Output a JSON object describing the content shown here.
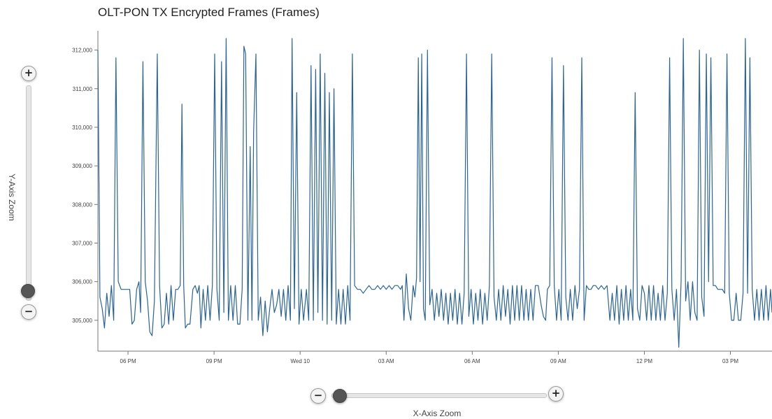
{
  "chart_data": {
    "type": "line",
    "title": "OLT-PON TX Encrypted Frames (Frames)",
    "xlabel": "",
    "ylabel": "",
    "ylim": [
      304200,
      312500
    ],
    "y_ticks": [
      305000,
      306000,
      307000,
      308000,
      309000,
      310000,
      311000,
      312000
    ],
    "y_tick_labels": [
      "305,000",
      "306,000",
      "307,000",
      "308,000",
      "309,000",
      "310,000",
      "311,000",
      "312,000"
    ],
    "x_range_hours": [
      16.95,
      40.45
    ],
    "x_ticks": [
      18,
      21,
      24,
      27,
      30,
      33,
      36,
      39
    ],
    "x_tick_labels": [
      "06 PM",
      "09 PM",
      "Wed 10",
      "03 AM",
      "06 AM",
      "09 AM",
      "12 PM",
      "03 PM"
    ],
    "grid": false,
    "legend": "none",
    "series": [
      {
        "color": "#2a6496",
        "points": [
          [
            16.95,
            312000
          ],
          [
            17.02,
            305600
          ],
          [
            17.1,
            305300
          ],
          [
            17.18,
            304800
          ],
          [
            17.26,
            305700
          ],
          [
            17.34,
            305100
          ],
          [
            17.42,
            305900
          ],
          [
            17.5,
            305000
          ],
          [
            17.58,
            311800
          ],
          [
            17.66,
            306000
          ],
          [
            17.76,
            305800
          ],
          [
            17.86,
            305800
          ],
          [
            17.96,
            305800
          ],
          [
            18.06,
            305800
          ],
          [
            18.14,
            304900
          ],
          [
            18.22,
            305000
          ],
          [
            18.3,
            305800
          ],
          [
            18.38,
            306000
          ],
          [
            18.44,
            305200
          ],
          [
            18.52,
            311700
          ],
          [
            18.6,
            306000
          ],
          [
            18.68,
            305500
          ],
          [
            18.76,
            304700
          ],
          [
            18.84,
            304600
          ],
          [
            18.92,
            305500
          ],
          [
            19.02,
            311900
          ],
          [
            19.1,
            305900
          ],
          [
            19.18,
            304800
          ],
          [
            19.26,
            304900
          ],
          [
            19.34,
            305700
          ],
          [
            19.42,
            304900
          ],
          [
            19.5,
            305900
          ],
          [
            19.58,
            305000
          ],
          [
            19.66,
            305800
          ],
          [
            19.74,
            305800
          ],
          [
            19.82,
            305900
          ],
          [
            19.88,
            310600
          ],
          [
            19.94,
            305900
          ],
          [
            20.0,
            304800
          ],
          [
            20.08,
            304900
          ],
          [
            20.16,
            304900
          ],
          [
            20.26,
            305800
          ],
          [
            20.34,
            305900
          ],
          [
            20.42,
            305700
          ],
          [
            20.48,
            305900
          ],
          [
            20.54,
            304800
          ],
          [
            20.62,
            305800
          ],
          [
            20.7,
            305000
          ],
          [
            20.78,
            305900
          ],
          [
            20.86,
            305000
          ],
          [
            20.94,
            305900
          ],
          [
            21.02,
            311900
          ],
          [
            21.1,
            305800
          ],
          [
            21.18,
            305000
          ],
          [
            21.26,
            311700
          ],
          [
            21.34,
            305200
          ],
          [
            21.42,
            312300
          ],
          [
            21.5,
            305000
          ],
          [
            21.58,
            305900
          ],
          [
            21.66,
            305000
          ],
          [
            21.74,
            305900
          ],
          [
            21.82,
            304900
          ],
          [
            21.9,
            304900
          ],
          [
            21.98,
            305800
          ],
          [
            22.04,
            312100
          ],
          [
            22.1,
            311900
          ],
          [
            22.18,
            305000
          ],
          [
            22.26,
            309500
          ],
          [
            22.32,
            305000
          ],
          [
            22.38,
            309900
          ],
          [
            22.46,
            311900
          ],
          [
            22.54,
            305000
          ],
          [
            22.62,
            305600
          ],
          [
            22.7,
            304600
          ],
          [
            22.78,
            305500
          ],
          [
            22.86,
            304700
          ],
          [
            22.94,
            305300
          ],
          [
            23.02,
            305800
          ],
          [
            23.1,
            305200
          ],
          [
            23.18,
            305400
          ],
          [
            23.26,
            305800
          ],
          [
            23.34,
            305100
          ],
          [
            23.42,
            305800
          ],
          [
            23.5,
            305000
          ],
          [
            23.58,
            305900
          ],
          [
            23.66,
            305000
          ],
          [
            23.72,
            312300
          ],
          [
            23.8,
            305300
          ],
          [
            23.88,
            310900
          ],
          [
            23.96,
            304900
          ],
          [
            24.04,
            305800
          ],
          [
            24.12,
            305000
          ],
          [
            24.22,
            305800
          ],
          [
            24.3,
            305000
          ],
          [
            24.38,
            311600
          ],
          [
            24.46,
            305000
          ],
          [
            24.54,
            311500
          ],
          [
            24.62,
            305200
          ],
          [
            24.7,
            311900
          ],
          [
            24.78,
            305000
          ],
          [
            24.86,
            311400
          ],
          [
            24.94,
            304900
          ],
          [
            25.02,
            310900
          ],
          [
            25.1,
            305000
          ],
          [
            25.18,
            311000
          ],
          [
            25.26,
            304900
          ],
          [
            25.34,
            305800
          ],
          [
            25.42,
            304900
          ],
          [
            25.5,
            305800
          ],
          [
            25.58,
            304900
          ],
          [
            25.66,
            305900
          ],
          [
            25.74,
            305000
          ],
          [
            25.82,
            311900
          ],
          [
            25.9,
            305900
          ],
          [
            26.0,
            305800
          ],
          [
            26.1,
            305800
          ],
          [
            26.2,
            305700
          ],
          [
            26.3,
            305800
          ],
          [
            26.4,
            305900
          ],
          [
            26.5,
            305800
          ],
          [
            26.6,
            305800
          ],
          [
            26.7,
            305900
          ],
          [
            26.8,
            305800
          ],
          [
            26.9,
            305900
          ],
          [
            27.0,
            305800
          ],
          [
            27.1,
            305900
          ],
          [
            27.2,
            305800
          ],
          [
            27.3,
            305900
          ],
          [
            27.4,
            305900
          ],
          [
            27.5,
            305800
          ],
          [
            27.56,
            305900
          ],
          [
            27.62,
            305000
          ],
          [
            27.7,
            306200
          ],
          [
            27.78,
            305300
          ],
          [
            27.86,
            305000
          ],
          [
            27.94,
            305900
          ],
          [
            28.0,
            305600
          ],
          [
            28.06,
            306100
          ],
          [
            28.12,
            311800
          ],
          [
            28.18,
            306000
          ],
          [
            28.24,
            311900
          ],
          [
            28.3,
            305300
          ],
          [
            28.36,
            305000
          ],
          [
            28.44,
            312000
          ],
          [
            28.52,
            305400
          ],
          [
            28.6,
            305800
          ],
          [
            28.68,
            305000
          ],
          [
            28.76,
            305700
          ],
          [
            28.84,
            305100
          ],
          [
            28.92,
            305800
          ],
          [
            29.0,
            305000
          ],
          [
            29.08,
            305700
          ],
          [
            29.16,
            304900
          ],
          [
            29.24,
            305700
          ],
          [
            29.32,
            305000
          ],
          [
            29.4,
            305800
          ],
          [
            29.48,
            304900
          ],
          [
            29.56,
            305700
          ],
          [
            29.64,
            304900
          ],
          [
            29.72,
            305700
          ],
          [
            29.8,
            311900
          ],
          [
            29.88,
            305100
          ],
          [
            29.96,
            305800
          ],
          [
            30.04,
            304900
          ],
          [
            30.12,
            305700
          ],
          [
            30.2,
            305000
          ],
          [
            30.28,
            305800
          ],
          [
            30.36,
            304900
          ],
          [
            30.44,
            305700
          ],
          [
            30.52,
            305000
          ],
          [
            30.6,
            305900
          ],
          [
            30.68,
            311900
          ],
          [
            30.76,
            305600
          ],
          [
            30.84,
            305000
          ],
          [
            30.92,
            305800
          ],
          [
            31.0,
            305000
          ],
          [
            31.08,
            305900
          ],
          [
            31.16,
            305100
          ],
          [
            31.24,
            305800
          ],
          [
            31.32,
            304900
          ],
          [
            31.4,
            305900
          ],
          [
            31.48,
            305000
          ],
          [
            31.56,
            305900
          ],
          [
            31.64,
            305000
          ],
          [
            31.72,
            305900
          ],
          [
            31.8,
            305000
          ],
          [
            31.88,
            305800
          ],
          [
            31.96,
            305000
          ],
          [
            32.04,
            305800
          ],
          [
            32.12,
            305000
          ],
          [
            32.2,
            305900
          ],
          [
            32.3,
            305900
          ],
          [
            32.4,
            305400
          ],
          [
            32.48,
            305100
          ],
          [
            32.56,
            305000
          ],
          [
            32.62,
            305800
          ],
          [
            32.7,
            305900
          ],
          [
            32.78,
            311800
          ],
          [
            32.86,
            305900
          ],
          [
            32.94,
            305000
          ],
          [
            33.02,
            305800
          ],
          [
            33.1,
            305000
          ],
          [
            33.18,
            311600
          ],
          [
            33.26,
            305600
          ],
          [
            33.34,
            305000
          ],
          [
            33.42,
            305800
          ],
          [
            33.5,
            305000
          ],
          [
            33.58,
            305900
          ],
          [
            33.66,
            305300
          ],
          [
            33.74,
            305800
          ],
          [
            33.82,
            311800
          ],
          [
            33.9,
            305000
          ],
          [
            33.98,
            305900
          ],
          [
            34.06,
            305800
          ],
          [
            34.14,
            305800
          ],
          [
            34.22,
            305900
          ],
          [
            34.3,
            305900
          ],
          [
            34.4,
            305800
          ],
          [
            34.5,
            305900
          ],
          [
            34.6,
            305800
          ],
          [
            34.7,
            305900
          ],
          [
            34.8,
            305000
          ],
          [
            34.88,
            305700
          ],
          [
            34.96,
            305000
          ],
          [
            35.04,
            305900
          ],
          [
            35.12,
            304900
          ],
          [
            35.2,
            305800
          ],
          [
            35.28,
            305000
          ],
          [
            35.36,
            305900
          ],
          [
            35.44,
            305000
          ],
          [
            35.52,
            305800
          ],
          [
            35.6,
            305000
          ],
          [
            35.68,
            310900
          ],
          [
            35.76,
            305300
          ],
          [
            35.84,
            305000
          ],
          [
            35.92,
            305900
          ],
          [
            36.0,
            305700
          ],
          [
            36.08,
            305000
          ],
          [
            36.16,
            305900
          ],
          [
            36.24,
            305000
          ],
          [
            36.32,
            305900
          ],
          [
            36.4,
            305000
          ],
          [
            36.48,
            305700
          ],
          [
            36.56,
            305000
          ],
          [
            36.64,
            305900
          ],
          [
            36.72,
            305000
          ],
          [
            36.8,
            305700
          ],
          [
            36.88,
            311800
          ],
          [
            36.96,
            305800
          ],
          [
            37.04,
            305000
          ],
          [
            37.12,
            305800
          ],
          [
            37.2,
            304300
          ],
          [
            37.28,
            306000
          ],
          [
            37.36,
            312300
          ],
          [
            37.44,
            305500
          ],
          [
            37.52,
            306000
          ],
          [
            37.6,
            305000
          ],
          [
            37.68,
            306000
          ],
          [
            37.76,
            305200
          ],
          [
            37.84,
            305000
          ],
          [
            37.92,
            312000
          ],
          [
            38.0,
            305600
          ],
          [
            38.08,
            305100
          ],
          [
            38.16,
            311900
          ],
          [
            38.24,
            306000
          ],
          [
            38.32,
            311800
          ],
          [
            38.4,
            305900
          ],
          [
            38.48,
            305900
          ],
          [
            38.56,
            305800
          ],
          [
            38.64,
            305800
          ],
          [
            38.72,
            305800
          ],
          [
            38.8,
            305700
          ],
          [
            38.88,
            311900
          ],
          [
            38.96,
            305700
          ],
          [
            39.04,
            305000
          ],
          [
            39.12,
            305000
          ],
          [
            39.2,
            305700
          ],
          [
            39.28,
            305000
          ],
          [
            39.36,
            305000
          ],
          [
            39.44,
            305700
          ],
          [
            39.52,
            312300
          ],
          [
            39.6,
            305700
          ],
          [
            39.68,
            311800
          ],
          [
            39.76,
            305800
          ],
          [
            39.84,
            305000
          ],
          [
            39.92,
            305800
          ],
          [
            40.0,
            305000
          ],
          [
            40.08,
            305800
          ],
          [
            40.16,
            305000
          ],
          [
            40.24,
            305900
          ],
          [
            40.32,
            305000
          ],
          [
            40.4,
            305800
          ],
          [
            40.45,
            305200
          ]
        ]
      }
    ]
  },
  "controls": {
    "y_zoom_label": "Y-Axis Zoom",
    "x_zoom_label": "X-Axis Zoom",
    "zoom_in_symbol": "+",
    "zoom_out_symbol": "−",
    "y_zoom_level": 0.05,
    "x_zoom_level": 0.0
  },
  "colors": {
    "line": "#2a6496",
    "axis": "#777777"
  }
}
